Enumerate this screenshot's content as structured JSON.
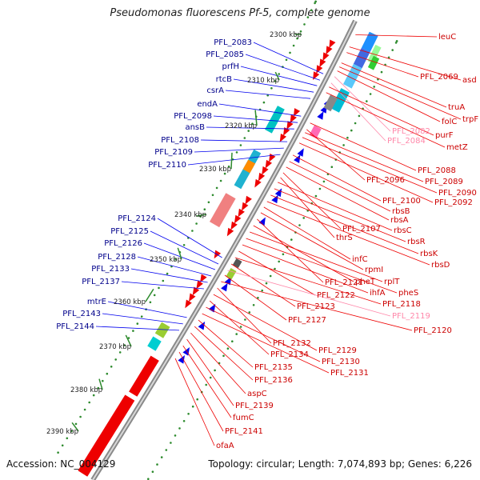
{
  "title": "Pseudomonas fluorescens Pf-5, complete genome",
  "accession": "Accession: NC_004129",
  "topology": "Topology: circular; Length: 7,074,893 bp; Genes: 6,226",
  "colors": {
    "backbone": "#909090",
    "forward_feature": "#0000ee",
    "reverse_feature": "#ee0000",
    "forward_label": "#00008b",
    "reverse_label": "#cc0000",
    "pseudo_label": "#ff88aa",
    "gc_dot": "#2e8b2e"
  },
  "kbp_ticks": [
    "2300 kbp",
    "2310 kbp",
    "2320 kbp",
    "2330 kbp",
    "2340 kbp",
    "2350 kbp",
    "2360 kbp",
    "2370 kbp",
    "2380 kbp",
    "2390 kbp"
  ],
  "left_labels": [
    "PFL_2083",
    "PFL_2085",
    "prfH",
    "rtcB",
    "csrA",
    "endA",
    "PFL_2098",
    "ansB",
    "PFL_2108",
    "PFL_2109",
    "PFL_2110",
    "PFL_2124",
    "PFL_2125",
    "PFL_2126",
    "PFL_2128",
    "PFL_2133",
    "PFL_2137",
    "mtrE",
    "PFL_2143",
    "PFL_2144"
  ],
  "right_labels": [
    "leuC",
    "asd",
    "PFL_2069",
    "truA",
    "trpF",
    "folC",
    "PFL_2082",
    "PFL_2084",
    "purF",
    "metZ",
    "PFL_2088",
    "PFL_2096",
    "PFL_2089",
    "PFL_2090",
    "PFL_2092",
    "PFL_2100",
    "rbsB",
    "rbsA",
    "PFL_2107",
    "thrS",
    "rbsC",
    "rbsR",
    "rbsK",
    "rbsD",
    "infC",
    "rpmI",
    "PFL_2121",
    "pheT",
    "rplT",
    "pheS",
    "ihfA",
    "PFL_2122",
    "PFL_2118",
    "PFL_2123",
    "PFL_2119",
    "PFL_2127",
    "PFL_2120",
    "PFL_2132",
    "PFL_2129",
    "PFL_2134",
    "PFL_2130",
    "PFL_2131",
    "PFL_2135",
    "PFL_2136",
    "aspC",
    "PFL_2139",
    "fumC",
    "PFL_2141",
    "ofaA"
  ]
}
